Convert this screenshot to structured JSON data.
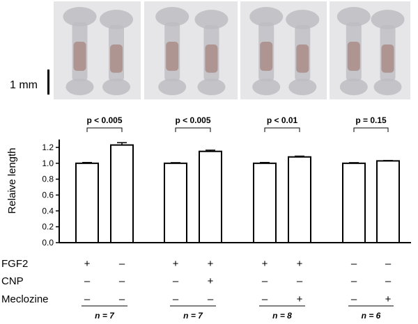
{
  "scale_bar": {
    "label": "1 mm"
  },
  "photo_panels": [
    {
      "bones": [
        "left",
        "right"
      ]
    },
    {
      "bones": [
        "left",
        "right"
      ]
    },
    {
      "bones": [
        "left",
        "right"
      ]
    },
    {
      "bones": [
        "left",
        "right"
      ]
    }
  ],
  "chart_data": {
    "type": "bar",
    "ylabel": "Relaive length",
    "ylim": [
      0,
      1.3
    ],
    "yticks": [
      "0.0",
      "0.2",
      "0.4",
      "0.6",
      "0.8",
      "1.0",
      "1.2"
    ],
    "groups": [
      {
        "values": [
          1.0,
          1.23
        ],
        "errors": [
          0.01,
          0.03
        ],
        "p_label": "p < 0.005",
        "n_label": "n = 7"
      },
      {
        "values": [
          1.0,
          1.15
        ],
        "errors": [
          0.008,
          0.015
        ],
        "p_label": "p < 0.005",
        "n_label": "n = 7"
      },
      {
        "values": [
          1.0,
          1.08
        ],
        "errors": [
          0.01,
          0.01
        ],
        "p_label": "p < 0.01",
        "n_label": "n = 8"
      },
      {
        "values": [
          1.0,
          1.03
        ],
        "errors": [
          0.008,
          0.005
        ],
        "p_label": "p = 0.15",
        "n_label": "n = 6"
      }
    ],
    "conditions": [
      {
        "label": "FGF2",
        "marks": [
          "+",
          "–",
          "+",
          "+",
          "+",
          "+",
          "–",
          "–"
        ]
      },
      {
        "label": "CNP",
        "marks": [
          "–",
          "–",
          "–",
          "+",
          "–",
          "–",
          "–",
          "–"
        ]
      },
      {
        "label": "Meclozine",
        "marks": [
          "–",
          "–",
          "–",
          "–",
          "–",
          "+",
          "–",
          "+"
        ]
      }
    ],
    "colors": {
      "bar_fill": "#ffffff",
      "stroke": "#000000",
      "photo_bg": "#e6e6e8",
      "bone": "#bdbdc2",
      "stain": "#9c6e63"
    }
  }
}
